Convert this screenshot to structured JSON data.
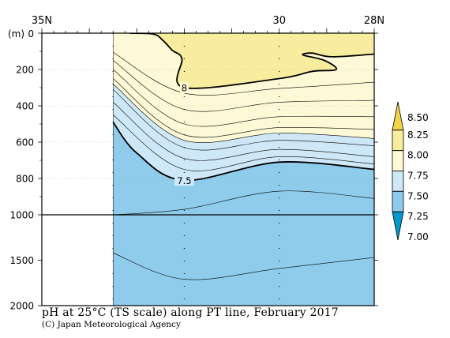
{
  "chart_data": {
    "type": "contour",
    "title": "pH at 25°C (TS scale) along PT line, February 2017",
    "credit": "(C) Japan Meteorological Agency",
    "y_unit_label": "(m)",
    "x_ticks": [
      {
        "label": "35N",
        "lat": 35
      },
      {
        "label": "30",
        "lat": 30
      },
      {
        "label": "28N",
        "lat": 28
      }
    ],
    "xlim": [
      35,
      28
    ],
    "y_ticks_upper": [
      0,
      200,
      400,
      600,
      800,
      1000
    ],
    "y_ticks_lower": [
      1500,
      2000
    ],
    "y_break": 1000,
    "ylim_upper": [
      0,
      1000
    ],
    "ylim_lower": [
      1000,
      2000
    ],
    "station_lats": [
      33.5,
      32.0,
      30.0
    ],
    "data_start_lat": 33.5,
    "colorbar": {
      "levels": [
        "8.50",
        "8.25",
        "8.00",
        "7.75",
        "7.50",
        "7.25",
        "7.00"
      ],
      "colors": [
        "#f2d44a",
        "#f8ec9e",
        "#fdf9d6",
        "#cfe8f7",
        "#8fcbea",
        "#0099cc"
      ]
    },
    "contour_labels": [
      {
        "text": "8",
        "lat": 32.0,
        "depth": 300
      },
      {
        "text": "7.5",
        "lat": 32.0,
        "depth": 810
      }
    ],
    "contours": [
      {
        "level": 8.0,
        "bold": true,
        "points": [
          [
            33.15,
            0
          ],
          [
            32.65,
            5
          ],
          [
            32.45,
            40
          ],
          [
            32.25,
            95
          ],
          [
            32.05,
            140
          ],
          [
            32.0,
            300
          ],
          [
            30.0,
            250
          ],
          [
            29.3,
            210
          ],
          [
            28.8,
            200
          ],
          [
            29.05,
            150
          ],
          [
            29.5,
            120
          ],
          [
            29.3,
            110
          ],
          [
            28.9,
            130
          ],
          [
            28.0,
            115
          ]
        ]
      },
      {
        "level": 7.95,
        "points": [
          [
            33.5,
            105
          ],
          [
            32.0,
            330
          ],
          [
            30.0,
            305
          ],
          [
            28.0,
            270
          ]
        ]
      },
      {
        "level": 7.9,
        "points": [
          [
            33.5,
            150
          ],
          [
            32.0,
            420
          ],
          [
            30.0,
            380
          ],
          [
            28.0,
            370
          ]
        ]
      },
      {
        "level": 7.85,
        "points": [
          [
            33.5,
            200
          ],
          [
            32.0,
            500
          ],
          [
            30.0,
            460
          ],
          [
            28.0,
            460
          ]
        ]
      },
      {
        "level": 7.8,
        "points": [
          [
            33.5,
            250
          ],
          [
            32.0,
            560
          ],
          [
            30.0,
            520
          ],
          [
            28.0,
            530
          ]
        ]
      },
      {
        "level": 7.75,
        "points": [
          [
            33.5,
            280
          ],
          [
            32.0,
            590
          ],
          [
            30.0,
            550
          ],
          [
            28.0,
            580
          ]
        ]
      },
      {
        "level": 7.7,
        "points": [
          [
            33.5,
            310
          ],
          [
            32.0,
            630
          ],
          [
            30.0,
            590
          ],
          [
            28.0,
            620
          ]
        ]
      },
      {
        "level": 7.65,
        "points": [
          [
            33.5,
            380
          ],
          [
            32.0,
            690
          ],
          [
            30.0,
            640
          ],
          [
            28.0,
            680
          ]
        ]
      },
      {
        "level": 7.6,
        "points": [
          [
            33.5,
            450
          ],
          [
            32.0,
            750
          ],
          [
            30.0,
            680
          ],
          [
            28.0,
            720
          ]
        ]
      },
      {
        "level": 7.5,
        "bold": true,
        "points": [
          [
            33.5,
            490
          ],
          [
            33.0,
            660
          ],
          [
            32.0,
            810
          ],
          [
            30.0,
            710
          ],
          [
            28.0,
            750
          ]
        ]
      },
      {
        "level": 7.4,
        "points": [
          [
            33.5,
            1000
          ],
          [
            32.0,
            970
          ],
          [
            30.0,
            870
          ],
          [
            28.0,
            910
          ]
        ]
      },
      {
        "level": 7.35,
        "points": [
          [
            33.5,
            1420
          ],
          [
            32.0,
            1710
          ],
          [
            30.0,
            1590
          ],
          [
            28.0,
            1470
          ]
        ]
      }
    ]
  }
}
